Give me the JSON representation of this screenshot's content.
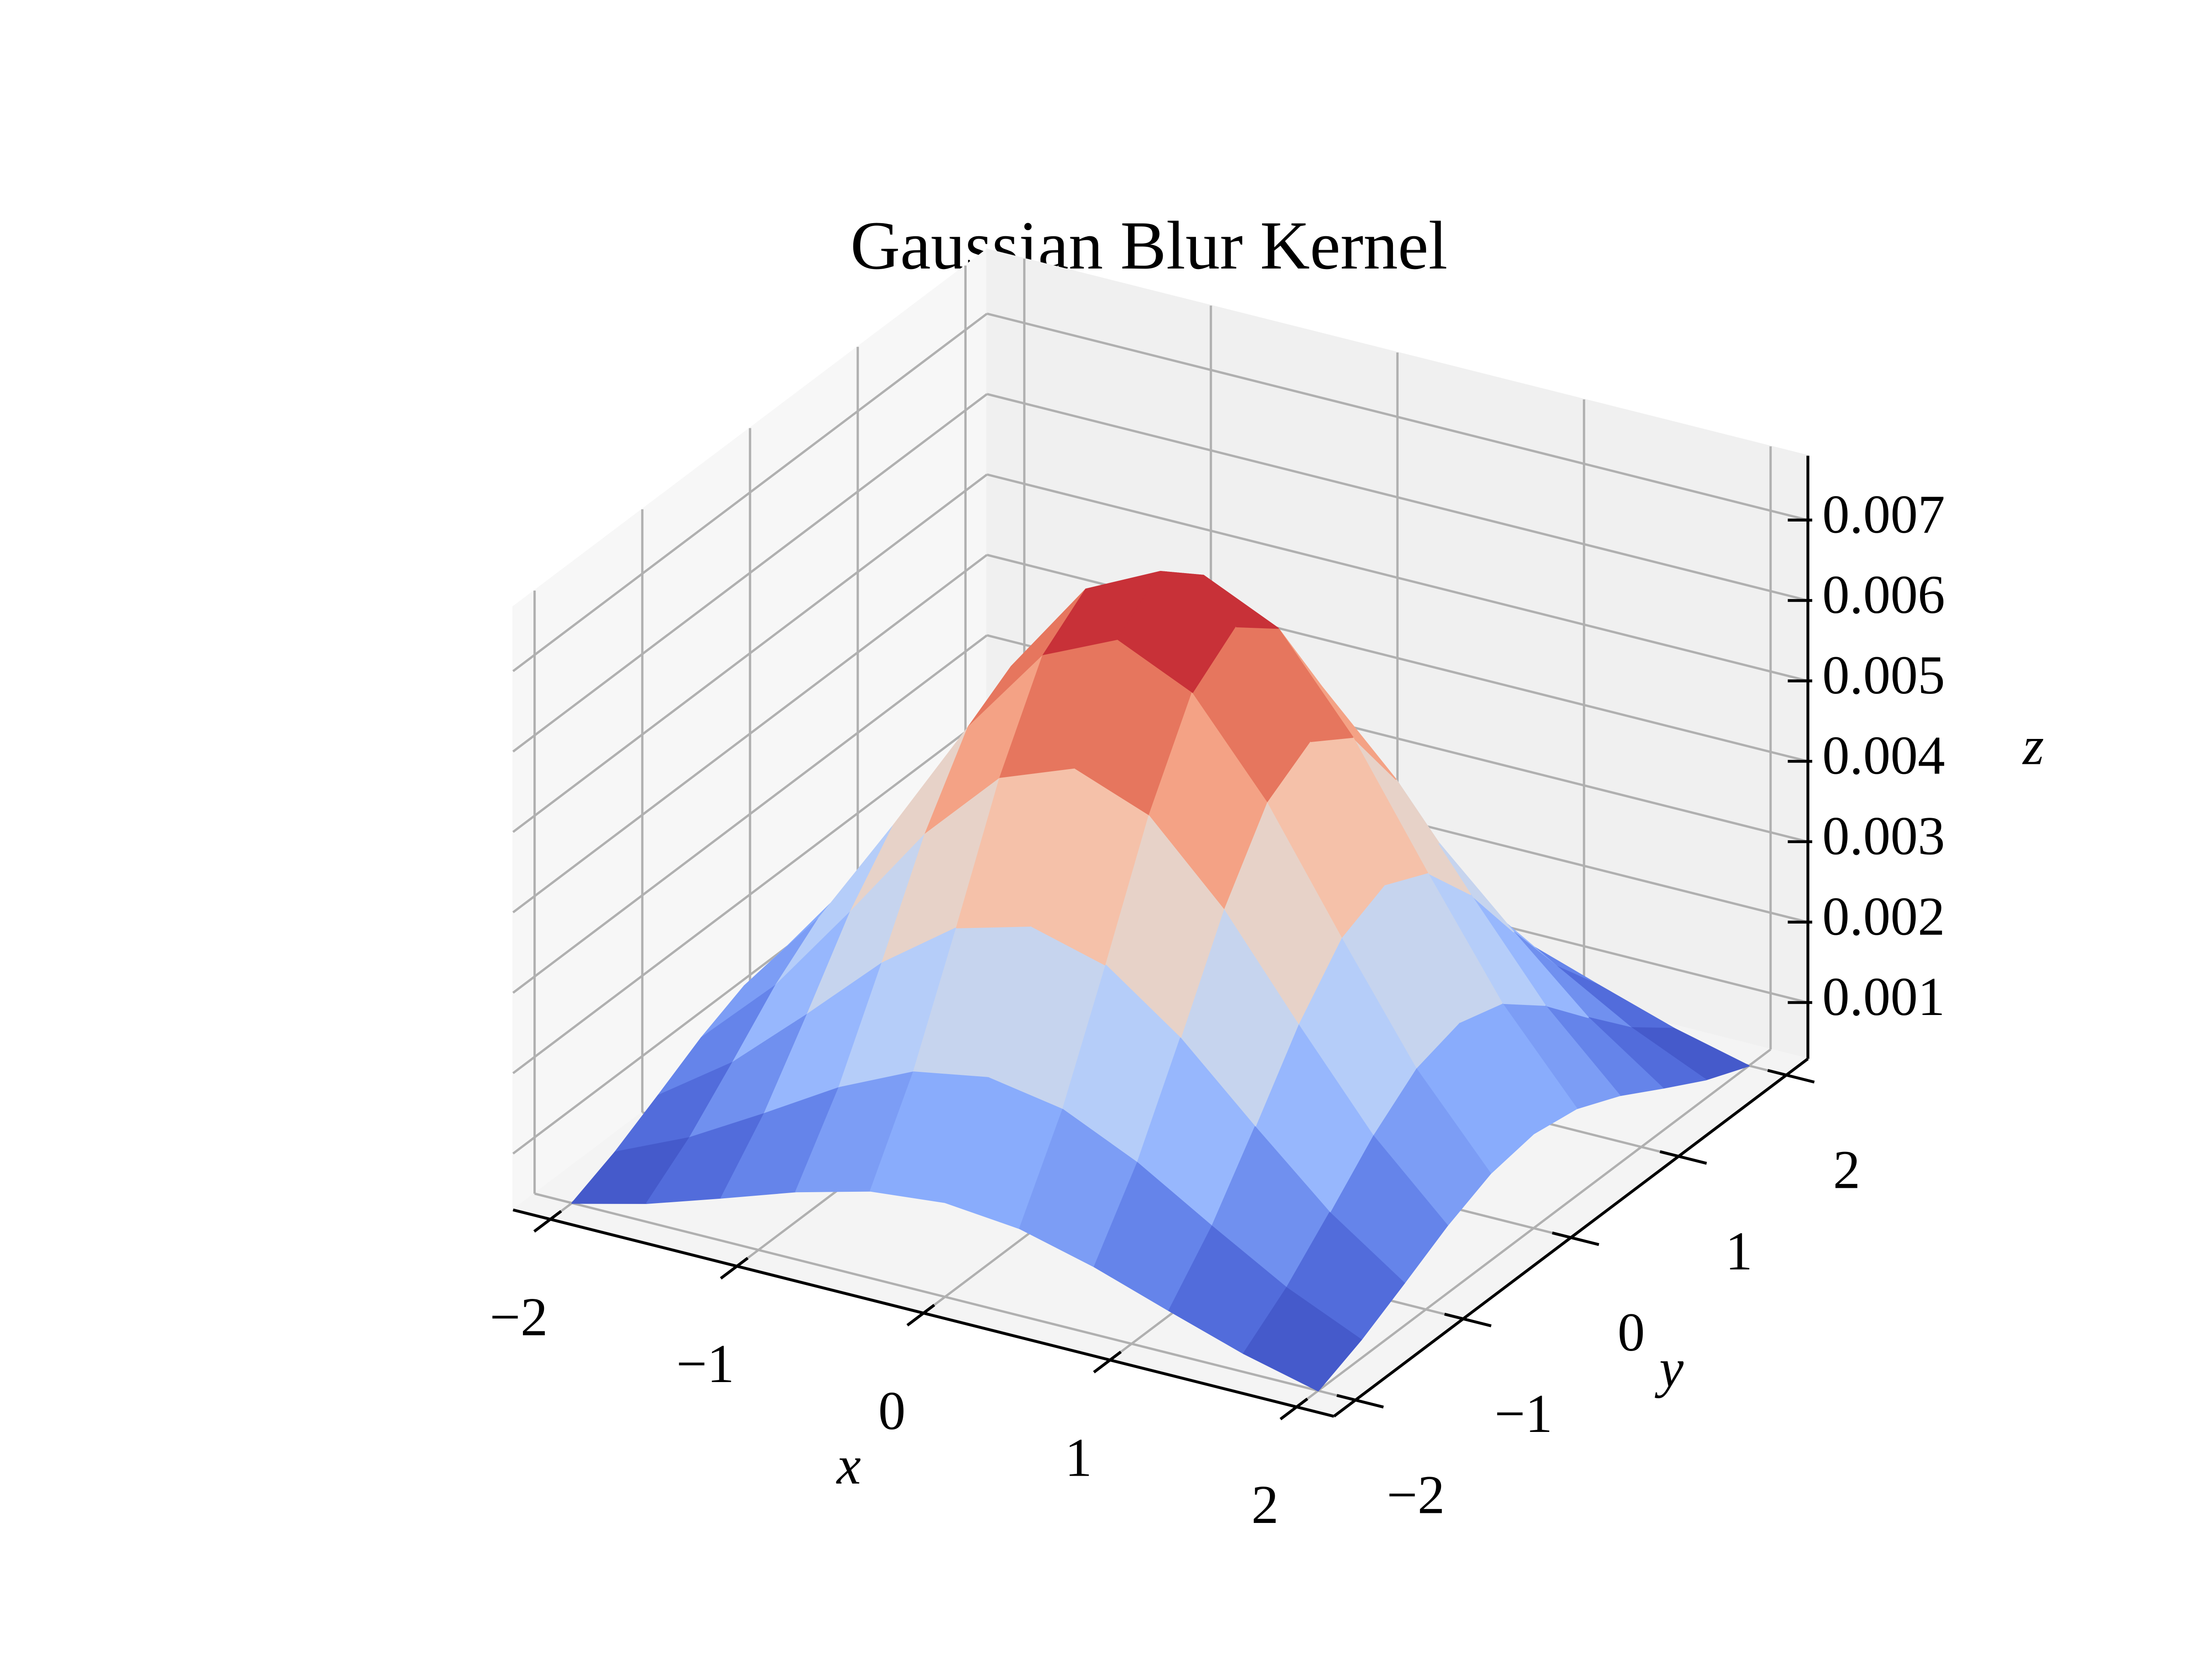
{
  "chart_data": {
    "type": "surface",
    "title": "Gaussian Blur Kernel",
    "x_label": "x",
    "y_label": "y",
    "z_label": "z",
    "colormap": "coolwarm",
    "grid": true,
    "x": [
      -2,
      -1.6,
      -1.2,
      -0.8,
      -0.4,
      0,
      0.4,
      0.8,
      1.2,
      1.6,
      2
    ],
    "y": [
      -2,
      -1.6,
      -1.2,
      -0.8,
      -0.4,
      0,
      0.4,
      0.8,
      1.2,
      1.6,
      2
    ],
    "z": [
      [
        0.000298,
        0.000529,
        0.000829,
        0.001141,
        0.001383,
        0.001474,
        0.001383,
        0.001141,
        0.000829,
        0.000529,
        0.000298
      ],
      [
        0.000529,
        0.000942,
        0.001474,
        0.00203,
        0.002459,
        0.002622,
        0.002459,
        0.00203,
        0.001474,
        0.000942,
        0.000529
      ],
      [
        0.000829,
        0.001474,
        0.002306,
        0.003176,
        0.003849,
        0.004103,
        0.003849,
        0.003176,
        0.002306,
        0.001474,
        0.000829
      ],
      [
        0.001141,
        0.00203,
        0.003176,
        0.004374,
        0.005301,
        0.005651,
        0.005301,
        0.004374,
        0.003176,
        0.00203,
        0.001141
      ],
      [
        0.001383,
        0.002459,
        0.003849,
        0.005301,
        0.006423,
        0.006847,
        0.006423,
        0.005301,
        0.003849,
        0.002459,
        0.001383
      ],
      [
        0.001474,
        0.002622,
        0.004103,
        0.005651,
        0.006847,
        0.0073,
        0.006847,
        0.005651,
        0.004103,
        0.002622,
        0.001474
      ],
      [
        0.001383,
        0.002459,
        0.003849,
        0.005301,
        0.006423,
        0.006847,
        0.006423,
        0.005301,
        0.003849,
        0.002459,
        0.001383
      ],
      [
        0.001141,
        0.00203,
        0.003176,
        0.004374,
        0.005301,
        0.005651,
        0.005301,
        0.004374,
        0.003176,
        0.00203,
        0.001141
      ],
      [
        0.000829,
        0.001474,
        0.002306,
        0.003176,
        0.003849,
        0.004103,
        0.003849,
        0.003176,
        0.002306,
        0.001474,
        0.000829
      ],
      [
        0.000529,
        0.000942,
        0.001474,
        0.00203,
        0.002459,
        0.002622,
        0.002459,
        0.00203,
        0.001474,
        0.000942,
        0.000529
      ],
      [
        0.000298,
        0.000529,
        0.000829,
        0.001141,
        0.001383,
        0.001474,
        0.001383,
        0.001141,
        0.000829,
        0.000529,
        0.000298
      ]
    ],
    "xlim": [
      -2.2,
      2.2
    ],
    "ylim": [
      -2.2,
      2.2
    ],
    "zlim": [
      0.0003,
      0.0078
    ],
    "xticks": [
      {
        "value": -2,
        "label": "−2"
      },
      {
        "value": -1,
        "label": "−1"
      },
      0,
      1,
      2
    ],
    "yticks": [
      {
        "value": -2,
        "label": "−2"
      },
      {
        "value": -1,
        "label": "−1"
      },
      0,
      1,
      2
    ],
    "zticks": [
      0.001,
      0.002,
      0.003,
      0.004,
      0.005,
      0.006,
      0.007
    ]
  }
}
